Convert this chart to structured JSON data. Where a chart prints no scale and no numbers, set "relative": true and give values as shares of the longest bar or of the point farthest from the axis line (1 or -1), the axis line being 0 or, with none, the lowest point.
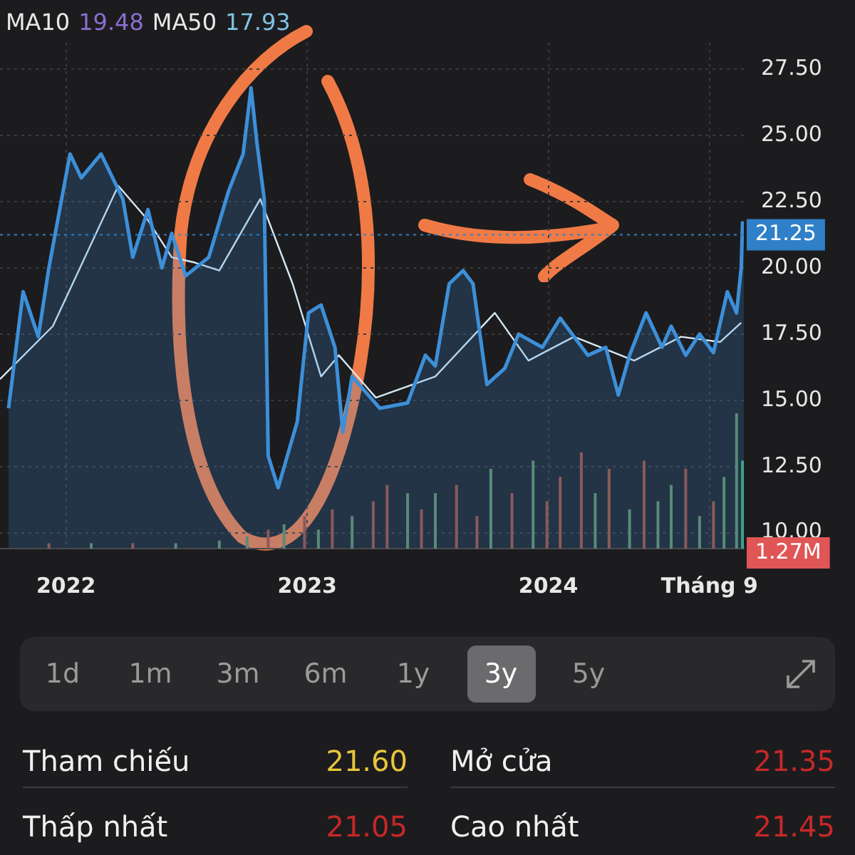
{
  "chart_data": [
    {
      "type": "area",
      "xlim": [
        "2021-09-23",
        "2024-10-23"
      ],
      "ylim": [
        9.4,
        28.5
      ],
      "xticks": [
        {
          "value": "2022",
          "label": "2022"
        },
        {
          "value": "2023",
          "label": "2023"
        },
        {
          "value": "2024",
          "label": "2024"
        },
        {
          "value": "2024-09",
          "label": "Tháng 9"
        }
      ],
      "yticks": [
        {
          "value": 10,
          "label": "10.00"
        },
        {
          "value": 12.5,
          "label": "12.50"
        },
        {
          "value": 15,
          "label": "15.00"
        },
        {
          "value": 17.5,
          "label": "17.50"
        },
        {
          "value": 20,
          "label": "20.00"
        },
        {
          "value": 22.5,
          "label": "22.50"
        },
        {
          "value": 25,
          "label": "25.00"
        },
        {
          "value": 27.5,
          "label": "27.50"
        }
      ],
      "grid": true,
      "ref_lines": [
        {
          "axis": "y",
          "value": 21.25,
          "label": "21.25",
          "color": "#2f80c8",
          "line_style": "dotted"
        }
      ],
      "annotations": [
        "MA10",
        "19.48",
        "MA50",
        "17.93"
      ],
      "series": [
        {
          "type": "area",
          "color": "#3d8fd8",
          "x": [
            "2021-10-06",
            "2021-10-28",
            "2021-11-20",
            "2021-12-06",
            "2022-01-07",
            "2022-01-24",
            "2022-02-23",
            "2022-03-28",
            "2022-04-12",
            "2022-05-05",
            "2022-05-26",
            "2022-06-10",
            "2022-07-01",
            "2022-08-05",
            "2022-09-04",
            "2022-09-26",
            "2022-10-08",
            "2022-10-17",
            "2022-10-28",
            "2022-11-03",
            "2022-11-18",
            "2022-12-17",
            "2023-01-03",
            "2023-01-22",
            "2023-02-12",
            "2023-02-24",
            "2023-03-10",
            "2023-04-21",
            "2023-06-02",
            "2023-06-29",
            "2023-07-14",
            "2023-08-04",
            "2023-08-25",
            "2023-09-09",
            "2023-09-30",
            "2023-10-27",
            "2023-11-17",
            "2023-12-23",
            "2024-01-19",
            "2024-03-01",
            "2024-03-28",
            "2024-04-16",
            "2024-05-03",
            "2024-05-28",
            "2024-06-21",
            "2024-07-05",
            "2024-07-27",
            "2024-08-17",
            "2024-09-07",
            "2024-09-28",
            "2024-10-12",
            "2024-10-19",
            "2024-10-21",
            "2024-10-23"
          ],
          "values": [
            14.7,
            19.1,
            17.4,
            20.0,
            24.3,
            23.4,
            24.3,
            22.6,
            20.4,
            22.2,
            20.0,
            21.3,
            19.7,
            20.4,
            22.9,
            24.3,
            26.8,
            24.7,
            22.6,
            12.9,
            11.7,
            14.2,
            18.3,
            18.6,
            17.0,
            13.8,
            15.9,
            14.7,
            14.9,
            16.7,
            16.3,
            19.4,
            19.9,
            19.4,
            15.6,
            16.2,
            17.5,
            17.0,
            18.1,
            16.7,
            17.0,
            15.2,
            16.7,
            18.3,
            17.0,
            17.8,
            16.7,
            17.5,
            16.8,
            19.1,
            18.3,
            20.0,
            21.7,
            21.25
          ]
        },
        {
          "type": "line",
          "color": "#d6e8f5",
          "x": [
            "2021-09-23",
            "2021-12-12",
            "2022-03-21",
            "2022-05-05",
            "2022-06-10",
            "2022-07-15",
            "2022-08-21",
            "2022-10-22",
            "2022-12-10",
            "2023-01-22",
            "2023-02-18",
            "2023-04-15",
            "2023-07-14",
            "2023-10-12",
            "2023-12-02",
            "2024-02-09",
            "2024-05-10",
            "2024-07-20",
            "2024-09-17",
            "2024-10-19"
          ],
          "values": [
            15.8,
            17.8,
            23.1,
            21.8,
            20.4,
            20.2,
            19.9,
            22.6,
            19.4,
            15.9,
            16.7,
            15.1,
            15.9,
            18.3,
            16.5,
            17.4,
            16.5,
            17.4,
            17.2,
            17.93
          ]
        }
      ]
    },
    {
      "type": "bar",
      "relative": true,
      "tick_labels": false,
      "xlim": [
        "2021-09-23",
        "2024-10-23"
      ],
      "annotations": [
        "1.27M"
      ],
      "x": [
        "2021-12-06",
        "2022-02-08",
        "2022-04-12",
        "2022-06-16",
        "2022-08-21",
        "2022-10-02",
        "2022-11-03",
        "2022-11-27",
        "2022-12-28",
        "2023-01-18",
        "2023-02-08",
        "2023-03-10",
        "2023-04-11",
        "2023-05-02",
        "2023-06-02",
        "2023-06-23",
        "2023-07-14",
        "2023-08-15",
        "2023-09-15",
        "2023-10-06",
        "2023-11-07",
        "2023-12-09",
        "2023-12-30",
        "2024-01-19",
        "2024-02-20",
        "2024-03-12",
        "2024-04-02",
        "2024-05-03",
        "2024-05-25",
        "2024-06-15",
        "2024-07-05",
        "2024-07-27",
        "2024-08-17",
        "2024-09-07",
        "2024-09-23",
        "2024-10-12",
        "2024-10-21"
      ],
      "values": [
        0.04,
        0.04,
        0.04,
        0.04,
        0.06,
        0.09,
        0.14,
        0.18,
        0.24,
        0.14,
        0.29,
        0.24,
        0.35,
        0.47,
        0.41,
        0.29,
        0.41,
        0.47,
        0.24,
        0.59,
        0.41,
        0.65,
        0.35,
        0.53,
        0.71,
        0.41,
        0.59,
        0.29,
        0.65,
        0.35,
        0.47,
        0.59,
        0.24,
        0.35,
        0.53,
        1,
        0.65
      ],
      "colors": [
        "#8a5a5a",
        "#5a8a7a",
        "#8a5a5a",
        "#5a8a7a",
        "#5a8a7a",
        "#5a8a7a",
        "#8a5a5a",
        "#5a8a7a",
        "#8a5a5a",
        "#5a8a7a",
        "#8a5a5a",
        "#5a8a7a",
        "#8a5a5a",
        "#8a5a5a",
        "#5a8a7a",
        "#8a5a5a",
        "#5a8a7a",
        "#8a5a5a",
        "#8a5a5a",
        "#5a8a7a",
        "#8a5a5a",
        "#5a8a7a",
        "#8a5a5a",
        "#8a5a5a",
        "#8a5a5a",
        "#5a8a7a",
        "#8a5a5a",
        "#5a8a7a",
        "#8a5a5a",
        "#5a8a7a",
        "#5a8a7a",
        "#8a5a5a",
        "#5a8a7a",
        "#8a5a5a",
        "#5a8a7a",
        "#5a8a7a",
        "#3aa88a"
      ]
    },
    {
      "type": "other",
      "annotations": [
        "1d",
        "1m",
        "3m",
        "6m",
        "1y",
        "3y",
        "5y"
      ]
    },
    {
      "type": "other",
      "annotations": [
        "Tham chiếu",
        "21.60",
        "Mở cửa",
        "21.35",
        "Thấp nhất",
        "21.05",
        "Cao nhất",
        "21.45"
      ],
      "colors": [
        "#e8c53a",
        "#c62828",
        "#c62828",
        "#c62828"
      ]
    }
  ]
}
